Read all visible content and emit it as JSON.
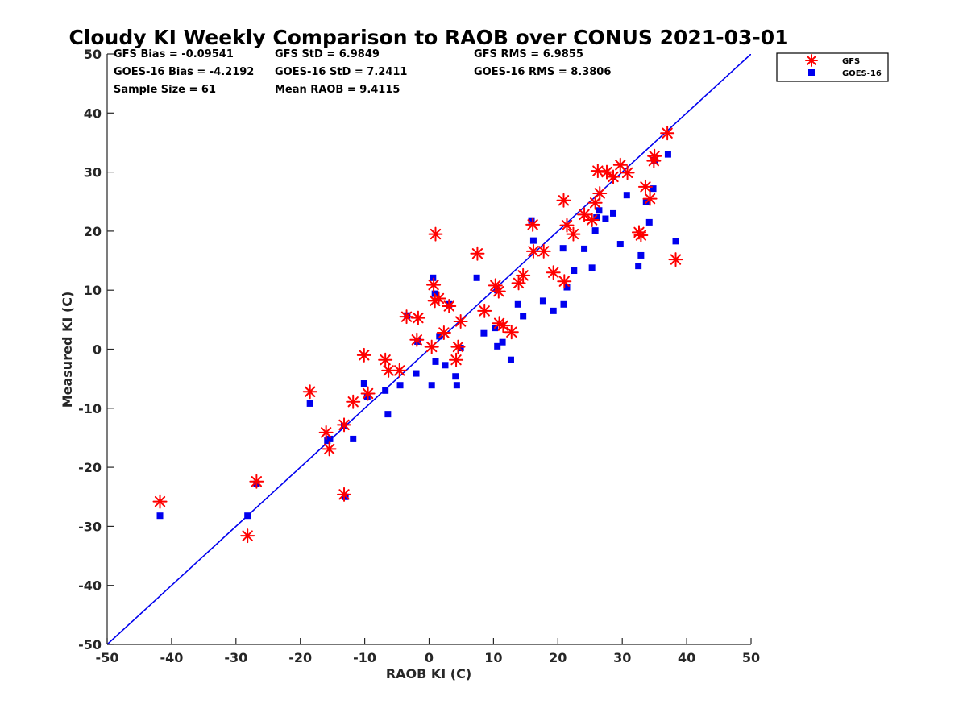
{
  "chart_data": {
    "type": "scatter",
    "title": "Cloudy KI Weekly Comparison to RAOB over CONUS 2021-03-01",
    "xlabel": "RAOB KI (C)",
    "ylabel": "Measured KI (C)",
    "xlim": [
      -50,
      50
    ],
    "ylim": [
      -50,
      50
    ],
    "xticks": [
      -50,
      -40,
      -30,
      -20,
      -10,
      0,
      10,
      20,
      30,
      40,
      50
    ],
    "yticks": [
      -50,
      -40,
      -30,
      -20,
      -10,
      0,
      10,
      20,
      30,
      40,
      50
    ],
    "grid": false,
    "legend_position": "outside top-right",
    "stats": {
      "gfs_bias": "GFS Bias = -0.09541",
      "gfs_std": "GFS StD = 6.9849",
      "gfs_rms": "GFS RMS = 6.9855",
      "goes_bias": "GOES-16 Bias = -4.2192",
      "goes_std": "GOES-16 StD = 7.2411",
      "goes_rms": "GOES-16 RMS = 8.3806",
      "sample_size": "Sample Size = 61",
      "mean_raob": "Mean RAOB = 9.4115"
    },
    "reference_line": {
      "x": [
        -50,
        50
      ],
      "y": [
        -50,
        50
      ],
      "color": "#0000ee"
    },
    "series": [
      {
        "name": "GFS",
        "marker": "asterisk",
        "color": "#ff0000",
        "points": [
          [
            -41.8,
            -25.8
          ],
          [
            -28.2,
            -31.6
          ],
          [
            -26.8,
            -22.4
          ],
          [
            -18.5,
            -7.2
          ],
          [
            -16.0,
            -14.1
          ],
          [
            -15.5,
            -16.9
          ],
          [
            -13.2,
            -12.8
          ],
          [
            -13.2,
            -24.6
          ],
          [
            -11.8,
            -8.9
          ],
          [
            -10.1,
            -1.0
          ],
          [
            -9.5,
            -7.5
          ],
          [
            -6.8,
            -1.8
          ],
          [
            -6.3,
            -3.6
          ],
          [
            -4.6,
            -3.6
          ],
          [
            -3.5,
            5.5
          ],
          [
            -1.9,
            1.6
          ],
          [
            -1.7,
            5.3
          ],
          [
            0.4,
            0.4
          ],
          [
            0.7,
            10.9
          ],
          [
            0.9,
            8.2
          ],
          [
            1.0,
            19.5
          ],
          [
            1.5,
            8.6
          ],
          [
            2.3,
            2.8
          ],
          [
            3.1,
            7.3
          ],
          [
            4.2,
            -1.8
          ],
          [
            4.5,
            0.4
          ],
          [
            4.9,
            4.7
          ],
          [
            7.5,
            16.2
          ],
          [
            8.6,
            6.5
          ],
          [
            10.3,
            10.8
          ],
          [
            10.8,
            9.8
          ],
          [
            10.9,
            4.4
          ],
          [
            11.5,
            4.0
          ],
          [
            12.8,
            2.9
          ],
          [
            13.9,
            11.2
          ],
          [
            14.6,
            12.5
          ],
          [
            16.1,
            21.1
          ],
          [
            16.2,
            16.6
          ],
          [
            17.8,
            16.6
          ],
          [
            19.3,
            13.0
          ],
          [
            20.9,
            25.2
          ],
          [
            21.0,
            11.5
          ],
          [
            21.4,
            21.0
          ],
          [
            22.4,
            19.5
          ],
          [
            24.1,
            22.8
          ],
          [
            25.3,
            21.9
          ],
          [
            25.8,
            24.8
          ],
          [
            26.2,
            30.2
          ],
          [
            26.5,
            26.4
          ],
          [
            27.6,
            30.0
          ],
          [
            28.6,
            29.2
          ],
          [
            29.7,
            31.2
          ],
          [
            30.8,
            29.9
          ],
          [
            32.6,
            19.8
          ],
          [
            32.9,
            19.3
          ],
          [
            33.6,
            27.5
          ],
          [
            34.3,
            25.5
          ],
          [
            34.9,
            31.9
          ],
          [
            35.0,
            32.7
          ],
          [
            37.0,
            36.6
          ],
          [
            38.3,
            15.2
          ]
        ]
      },
      {
        "name": "GOES-16",
        "marker": "square",
        "color": "#0000ee",
        "points": [
          [
            -41.8,
            -28.2
          ],
          [
            -28.2,
            -28.2
          ],
          [
            -26.8,
            -22.8
          ],
          [
            -18.5,
            -9.2
          ],
          [
            -15.8,
            -15.5
          ],
          [
            -15.4,
            -15.2
          ],
          [
            -13.2,
            -13.0
          ],
          [
            -13.0,
            -25.0
          ],
          [
            -11.8,
            -15.2
          ],
          [
            -10.1,
            -5.8
          ],
          [
            -9.6,
            -8.0
          ],
          [
            -6.8,
            -7.0
          ],
          [
            -6.4,
            -11.0
          ],
          [
            -4.5,
            -6.1
          ],
          [
            -3.4,
            5.7
          ],
          [
            -2.0,
            -4.1
          ],
          [
            -1.8,
            1.3
          ],
          [
            0.4,
            -6.1
          ],
          [
            0.6,
            12.1
          ],
          [
            0.9,
            9.4
          ],
          [
            1.0,
            -2.1
          ],
          [
            1.6,
            2.2
          ],
          [
            2.5,
            -2.7
          ],
          [
            3.1,
            7.6
          ],
          [
            4.1,
            -4.6
          ],
          [
            4.3,
            -6.1
          ],
          [
            4.9,
            0.2
          ],
          [
            7.4,
            12.1
          ],
          [
            8.5,
            2.7
          ],
          [
            10.2,
            3.6
          ],
          [
            10.6,
            10.0
          ],
          [
            10.6,
            0.5
          ],
          [
            11.4,
            1.2
          ],
          [
            12.7,
            -1.8
          ],
          [
            13.8,
            7.6
          ],
          [
            14.6,
            5.6
          ],
          [
            15.9,
            21.8
          ],
          [
            16.2,
            18.4
          ],
          [
            17.7,
            8.2
          ],
          [
            19.3,
            6.5
          ],
          [
            20.8,
            17.1
          ],
          [
            20.9,
            7.6
          ],
          [
            21.4,
            10.5
          ],
          [
            22.5,
            13.3
          ],
          [
            24.1,
            17.0
          ],
          [
            25.3,
            13.8
          ],
          [
            25.8,
            20.1
          ],
          [
            26.0,
            22.3
          ],
          [
            26.4,
            23.5
          ],
          [
            27.4,
            22.1
          ],
          [
            28.6,
            23.0
          ],
          [
            29.7,
            17.8
          ],
          [
            30.7,
            26.1
          ],
          [
            32.5,
            14.1
          ],
          [
            32.9,
            15.9
          ],
          [
            33.7,
            25.0
          ],
          [
            34.2,
            21.5
          ],
          [
            34.8,
            27.2
          ],
          [
            35.0,
            32.0
          ],
          [
            37.1,
            33.0
          ],
          [
            38.3,
            18.3
          ]
        ]
      }
    ]
  }
}
